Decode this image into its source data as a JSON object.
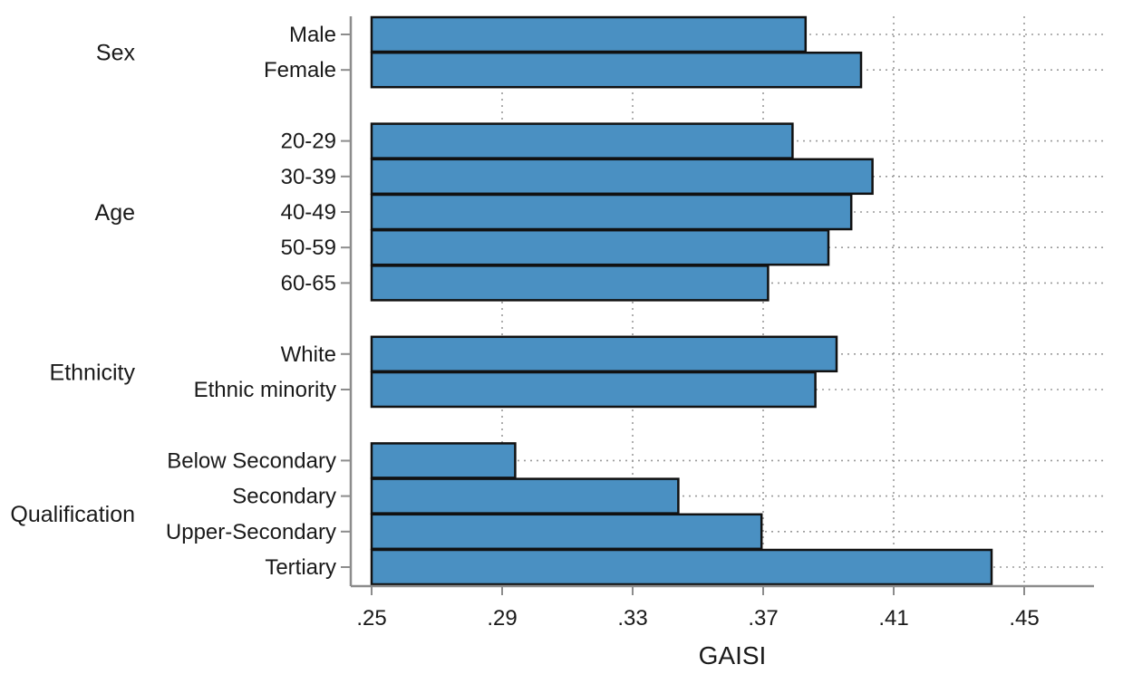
{
  "chart_data": {
    "type": "bar",
    "orientation": "horizontal",
    "xlabel": "GAISI",
    "xlim": [
      0.25,
      0.47
    ],
    "xticks": [
      0.25,
      0.29,
      0.33,
      0.37,
      0.41,
      0.45
    ],
    "xtick_labels": [
      ".25",
      ".29",
      ".33",
      ".37",
      ".41",
      ".45"
    ],
    "grid": true,
    "bar_color": "#4a90c2",
    "groups": [
      {
        "label": "Sex",
        "categories": [
          "Male",
          "Female"
        ],
        "values": [
          0.383,
          0.4
        ]
      },
      {
        "label": "Age",
        "categories": [
          "20-29",
          "30-39",
          "40-49",
          "50-59",
          "60-65"
        ],
        "values": [
          0.379,
          0.4035,
          0.397,
          0.39,
          0.3715
        ]
      },
      {
        "label": "Ethnicity",
        "categories": [
          "White",
          "Ethnic minority"
        ],
        "values": [
          0.3925,
          0.386
        ]
      },
      {
        "label": "Qualification",
        "categories": [
          "Below Secondary",
          "Secondary",
          "Upper-Secondary",
          "Tertiary"
        ],
        "values": [
          0.294,
          0.344,
          0.3695,
          0.44
        ]
      }
    ]
  }
}
